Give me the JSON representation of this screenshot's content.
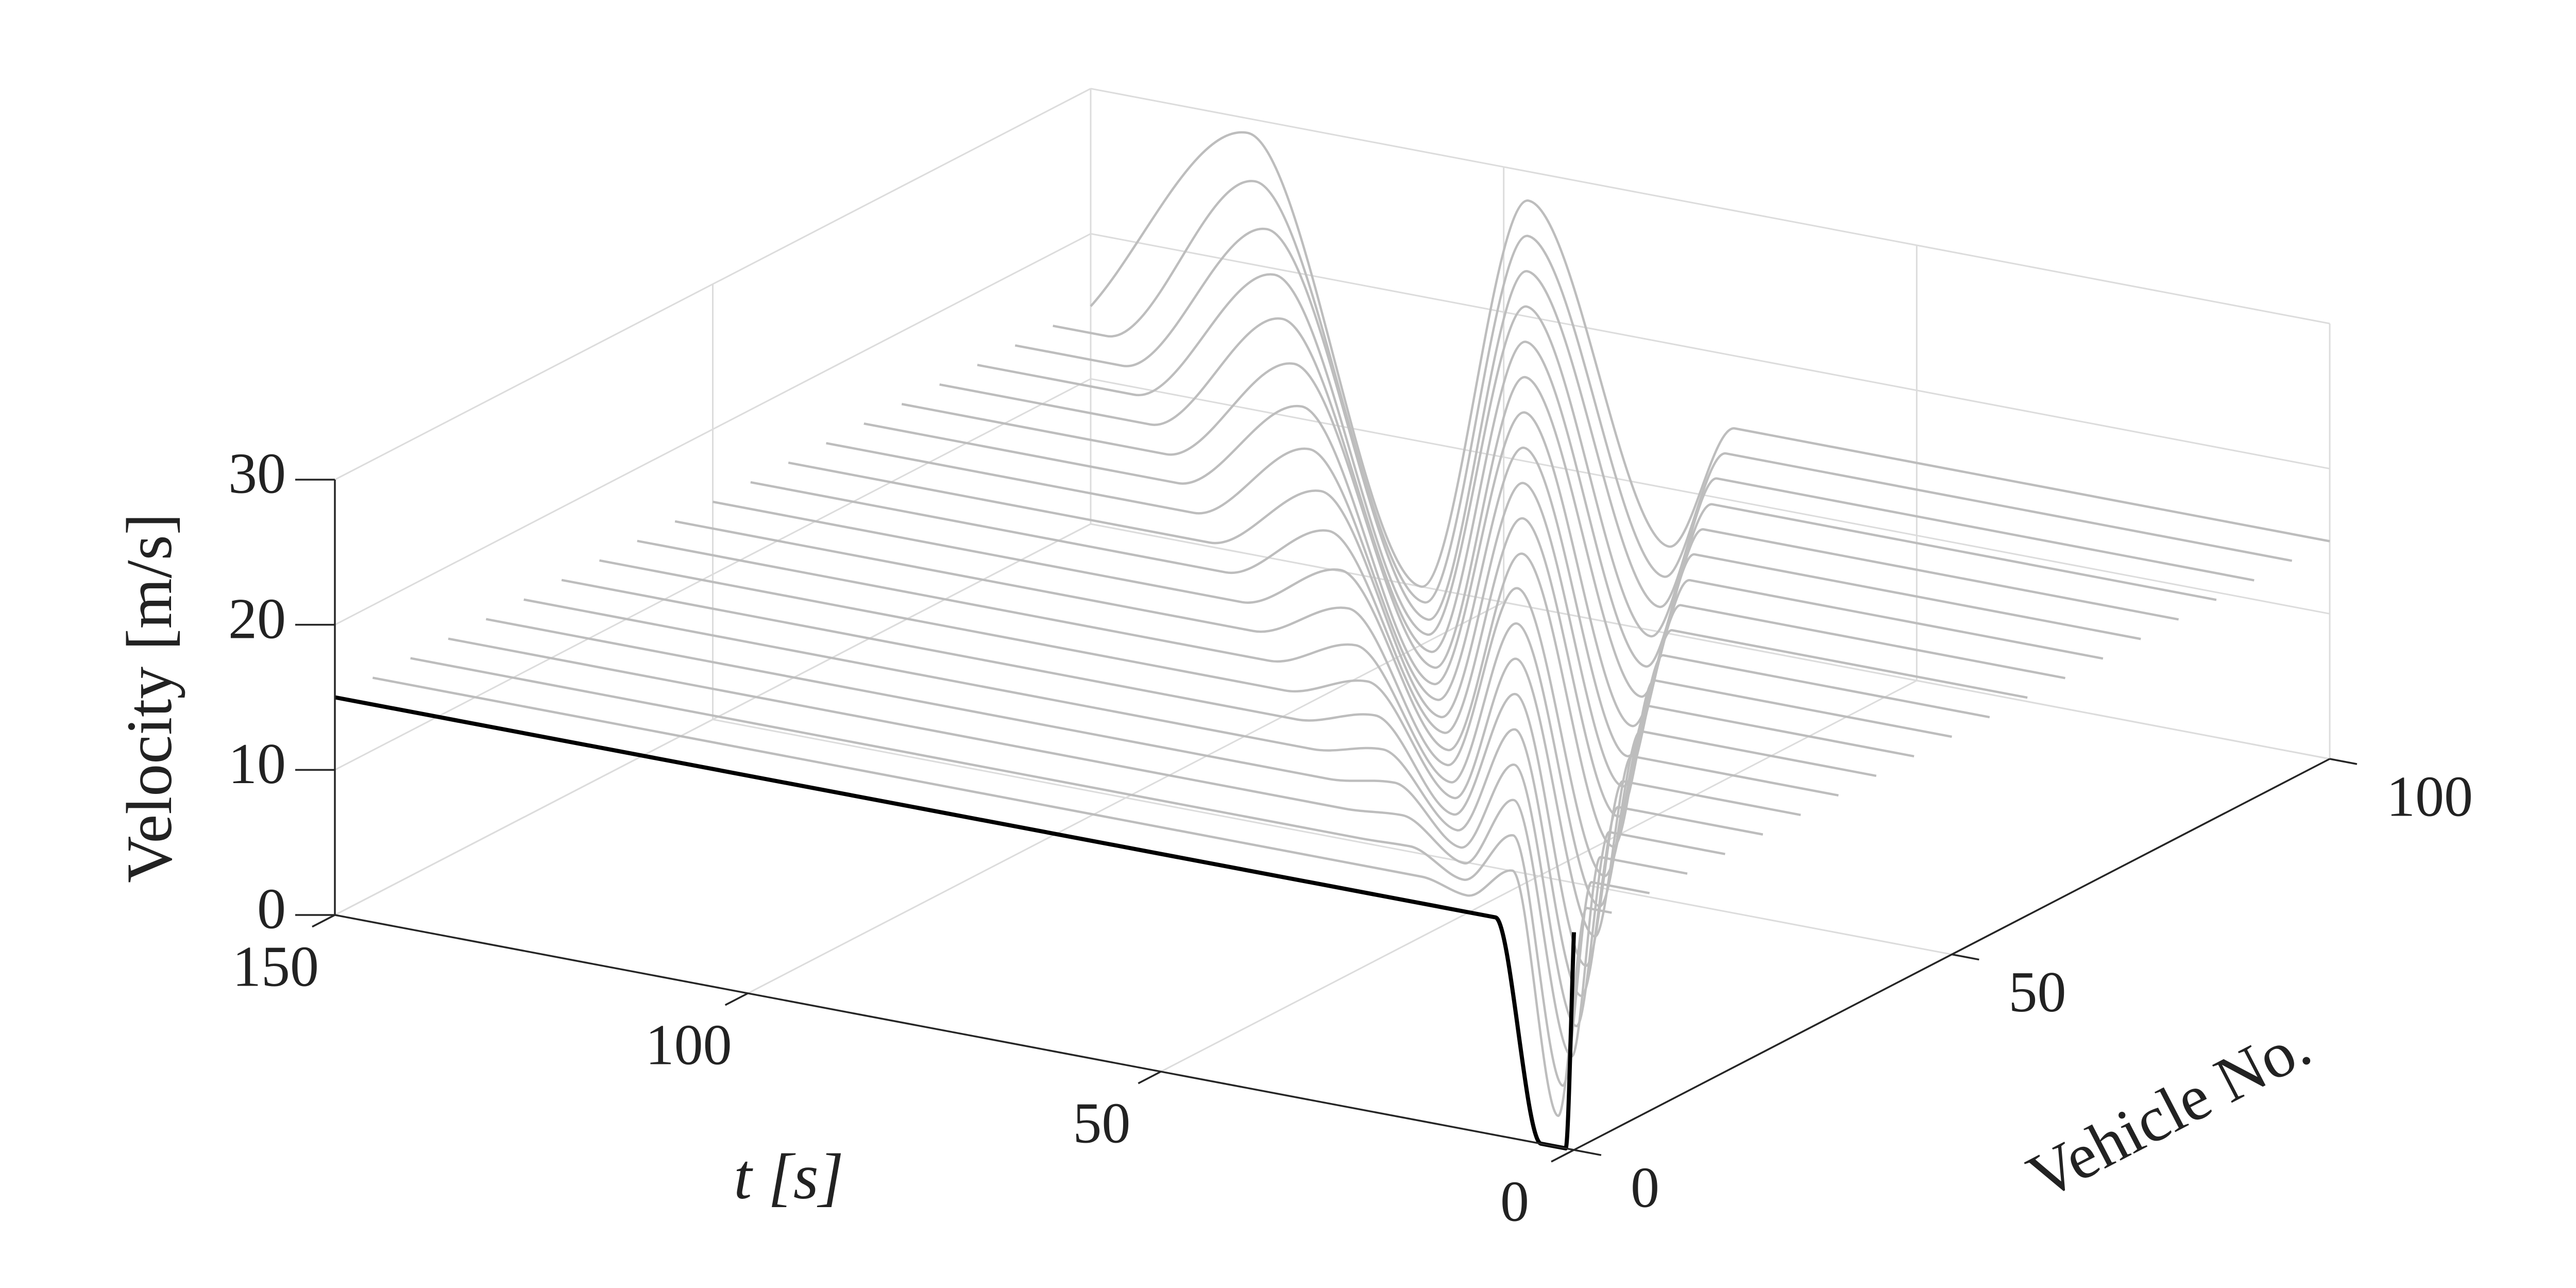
{
  "chart_data": {
    "type": "waterfall3d",
    "xlabel": "t [s]",
    "ylabel": "Velocity [m/s]",
    "zlabel": "Vehicle No.",
    "xlim": [
      0,
      150
    ],
    "xticks": [
      0,
      50,
      100,
      150
    ],
    "ylim": [
      0,
      30
    ],
    "yticks": [
      0,
      10,
      20,
      30
    ],
    "zlim": [
      0,
      100
    ],
    "zticks": [
      0,
      50,
      100
    ],
    "grid": true,
    "series": [
      {
        "vehicle": 0,
        "color": "#000000",
        "x": [
          0,
          1,
          4,
          9.5,
          150
        ],
        "values": [
          15,
          0,
          0,
          15,
          15
        ]
      },
      {
        "vehicle": 5,
        "color": "#bdbdbd",
        "x": [
          0,
          3,
          6.5,
          12,
          17.5,
          23,
          29,
          150
        ],
        "values": [
          15,
          15,
          0.3,
          16.6,
          14.3,
          15,
          15,
          15
        ]
      },
      {
        "vehicle": 10,
        "color": "#bdbdbd",
        "x": [
          0,
          7,
          10.5,
          16.5,
          22.5,
          29,
          35,
          150
        ],
        "values": [
          15,
          15,
          0.6,
          17.2,
          13.5,
          15.1,
          15,
          15
        ]
      },
      {
        "vehicle": 15,
        "color": "#bdbdbd",
        "x": [
          0,
          10.5,
          14,
          21,
          27,
          34.5,
          41.5,
          150
        ],
        "values": [
          15,
          15,
          0.9,
          17.8,
          12.8,
          15.3,
          15,
          15
        ]
      },
      {
        "vehicle": 20,
        "color": "#bdbdbd",
        "x": [
          0,
          14,
          18,
          25.5,
          32,
          40,
          48,
          150
        ],
        "values": [
          15,
          15,
          1.2,
          18.4,
          12,
          15.6,
          15,
          15
        ]
      },
      {
        "vehicle": 25,
        "color": "#bdbdbd",
        "x": [
          0,
          17.5,
          22,
          30,
          37,
          46,
          54.5,
          150
        ],
        "values": [
          15,
          15,
          1.5,
          19,
          11.3,
          15.9,
          15,
          15
        ]
      },
      {
        "vehicle": 30,
        "color": "#bdbdbd",
        "x": [
          0,
          21.5,
          26,
          34.5,
          42,
          51.5,
          61,
          150
        ],
        "values": [
          15,
          15,
          1.8,
          19.6,
          10.5,
          16.3,
          15,
          15
        ]
      },
      {
        "vehicle": 35,
        "color": "#bdbdbd",
        "x": [
          0,
          25,
          29.5,
          39,
          46.5,
          57,
          67,
          150
        ],
        "values": [
          15,
          15,
          2.1,
          20.2,
          9.8,
          16.7,
          15,
          15
        ]
      },
      {
        "vehicle": 40,
        "color": "#bdbdbd",
        "x": [
          0,
          28.5,
          33.5,
          43.5,
          51.5,
          63,
          73.5,
          150
        ],
        "values": [
          15,
          15,
          2.4,
          20.8,
          9,
          17.2,
          15,
          15
        ]
      },
      {
        "vehicle": 45,
        "color": "#bdbdbd",
        "x": [
          0,
          32,
          37.5,
          48,
          56.5,
          68.5,
          80,
          150
        ],
        "values": [
          15,
          15,
          2.7,
          21.4,
          8.3,
          17.8,
          15,
          15
        ]
      },
      {
        "vehicle": 50,
        "color": "#bdbdbd",
        "x": [
          0,
          36,
          41,
          52,
          61,
          74,
          86,
          150
        ],
        "values": [
          15,
          15,
          3,
          22,
          7.5,
          18.5,
          15,
          15
        ]
      },
      {
        "vehicle": 55,
        "color": "#bdbdbd",
        "x": [
          0,
          39.5,
          45,
          56.5,
          66,
          80,
          92.5,
          150
        ],
        "values": [
          15,
          15,
          3.3,
          22.6,
          6.8,
          19.2,
          15,
          15
        ]
      },
      {
        "vehicle": 60,
        "color": "#bdbdbd",
        "x": [
          0,
          43,
          49,
          61,
          71,
          85.5,
          99,
          150
        ],
        "values": [
          15,
          15,
          3.6,
          23.2,
          6,
          20,
          15,
          15
        ]
      },
      {
        "vehicle": 65,
        "color": "#bdbdbd",
        "x": [
          0,
          46.5,
          53,
          65.5,
          76,
          91.5,
          105.5,
          150
        ],
        "values": [
          15,
          15,
          3.9,
          23.8,
          5.3,
          20.9,
          15,
          15
        ]
      },
      {
        "vehicle": 70,
        "color": "#bdbdbd",
        "x": [
          0,
          50,
          57,
          70,
          81,
          97,
          112,
          150
        ],
        "values": [
          15,
          15,
          4.2,
          24.4,
          4.5,
          21.9,
          15,
          15
        ]
      },
      {
        "vehicle": 75,
        "color": "#bdbdbd",
        "x": [
          0,
          54,
          60.5,
          74.5,
          85.5,
          102.5,
          118,
          150
        ],
        "values": [
          15,
          15,
          4.5,
          25,
          3.8,
          22.9,
          15,
          15
        ]
      },
      {
        "vehicle": 80,
        "color": "#bdbdbd",
        "x": [
          0,
          57.5,
          64.5,
          79,
          90.5,
          108.5,
          124.5,
          150
        ],
        "values": [
          15,
          15,
          4.8,
          25.6,
          3,
          24,
          15,
          15
        ]
      },
      {
        "vehicle": 85,
        "color": "#bdbdbd",
        "x": [
          0,
          61,
          68.5,
          83.5,
          95.5,
          114,
          131,
          150
        ],
        "values": [
          15,
          15,
          5.1,
          26.2,
          2.3,
          25.1,
          15,
          15
        ]
      },
      {
        "vehicle": 90,
        "color": "#bdbdbd",
        "x": [
          0,
          65,
          72,
          88,
          100,
          119.5,
          137,
          150
        ],
        "values": [
          15,
          15,
          5.4,
          26.8,
          1.5,
          26.3,
          15,
          15
        ]
      },
      {
        "vehicle": 95,
        "color": "#bdbdbd",
        "x": [
          0,
          68.5,
          76,
          92.5,
          105,
          125.5,
          143.5,
          150
        ],
        "values": [
          15,
          15,
          5.7,
          27.4,
          0.8,
          27.6,
          15,
          15
        ]
      },
      {
        "vehicle": 100,
        "color": "#bdbdbd",
        "x": [
          0,
          72,
          80,
          97,
          110,
          131,
          150
        ],
        "values": [
          15,
          15,
          6,
          28,
          0,
          29,
          15
        ]
      }
    ]
  }
}
